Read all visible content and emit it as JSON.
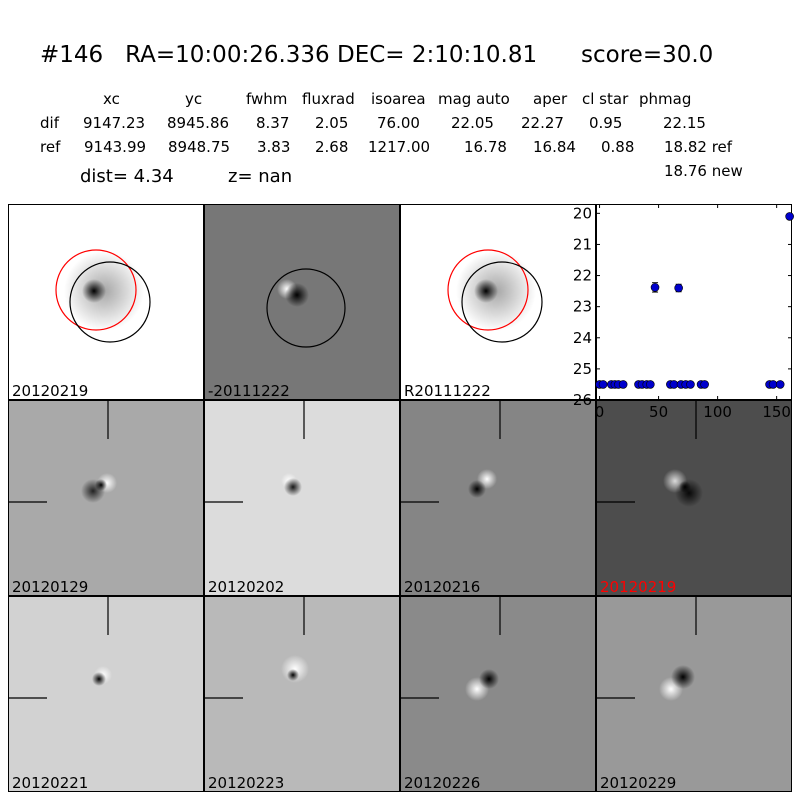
{
  "header": {
    "id": "#146",
    "ra": "RA=10:00:26.336",
    "dec": "DEC= 2:10:10.81",
    "score": "score=30.0"
  },
  "table": {
    "columns": [
      "xc",
      "yc",
      "fwhm",
      "fluxrad",
      "isoarea",
      "mag auto",
      "aper",
      "cl star",
      "phmag"
    ],
    "rows": [
      {
        "label": "dif",
        "values": [
          "9147.23",
          "8945.86",
          "8.37",
          "2.05",
          "76.00",
          "22.05",
          "22.27",
          "0.95",
          "22.15"
        ]
      },
      {
        "label": "ref",
        "values": [
          "9143.99",
          "8948.75",
          "3.83",
          "2.68",
          "1217.00",
          "16.78",
          "16.84",
          "0.88",
          "18.82 ref"
        ]
      }
    ],
    "phmag_new": "18.76 new"
  },
  "dist_text": "dist=  4.34",
  "z_text": "z=   nan",
  "colors": {
    "circle_red": "#ff0000",
    "circle_black": "#000000",
    "marker": "#0000cc",
    "highlight_label": "#ff0000"
  },
  "panels": [
    {
      "label": "20120219",
      "bg": "#ffffff",
      "kind": "ref"
    },
    {
      "label": "-20111222",
      "bg": "#777777",
      "kind": "diff"
    },
    {
      "label": "R20111222",
      "bg": "#ffffff",
      "kind": "ref"
    },
    {
      "label": "20120129",
      "bg": "#a9a9a9",
      "kind": "stamp"
    },
    {
      "label": "20120202",
      "bg": "#dcdcdc",
      "kind": "stamp"
    },
    {
      "label": "20120216",
      "bg": "#858585",
      "kind": "stamp"
    },
    {
      "label": "20120219",
      "bg": "#4d4d4d",
      "kind": "stamp",
      "highlight": true
    },
    {
      "label": "20120221",
      "bg": "#d2d2d2",
      "kind": "stamp"
    },
    {
      "label": "20120223",
      "bg": "#b9b9b9",
      "kind": "stamp"
    },
    {
      "label": "20120226",
      "bg": "#8a8a8a",
      "kind": "stamp"
    },
    {
      "label": "20120229",
      "bg": "#999999",
      "kind": "stamp"
    }
  ],
  "chart_data": {
    "type": "scatter",
    "title": "",
    "xlabel": "",
    "ylabel": "",
    "xlim": [
      -3,
      163
    ],
    "ylim": [
      26,
      19.7
    ],
    "y_inverted": true,
    "xticks": [
      0,
      50,
      100,
      150
    ],
    "yticks": [
      20,
      21,
      22,
      23,
      24,
      25,
      26
    ],
    "series": [
      {
        "marker": "circle",
        "points": [
          {
            "x": 0,
            "y": 25.5
          },
          {
            "x": 3,
            "y": 25.5
          },
          {
            "x": 10,
            "y": 25.5
          },
          {
            "x": 13,
            "y": 25.5
          },
          {
            "x": 16,
            "y": 25.5
          },
          {
            "x": 20,
            "y": 25.5
          },
          {
            "x": 33,
            "y": 25.5
          },
          {
            "x": 36,
            "y": 25.5
          },
          {
            "x": 40,
            "y": 25.5
          },
          {
            "x": 43,
            "y": 25.5
          },
          {
            "x": 47,
            "y": 22.38,
            "err": 0.15
          },
          {
            "x": 60,
            "y": 25.5
          },
          {
            "x": 63,
            "y": 25.5
          },
          {
            "x": 67,
            "y": 22.4,
            "err": 0.12
          },
          {
            "x": 69,
            "y": 25.5
          },
          {
            "x": 73,
            "y": 25.5
          },
          {
            "x": 77,
            "y": 25.5
          },
          {
            "x": 86,
            "y": 25.5
          },
          {
            "x": 89,
            "y": 25.5
          },
          {
            "x": 144,
            "y": 25.5
          },
          {
            "x": 147,
            "y": 25.5
          },
          {
            "x": 153,
            "y": 25.5
          },
          {
            "x": 161,
            "y": 20.1
          }
        ]
      }
    ]
  }
}
